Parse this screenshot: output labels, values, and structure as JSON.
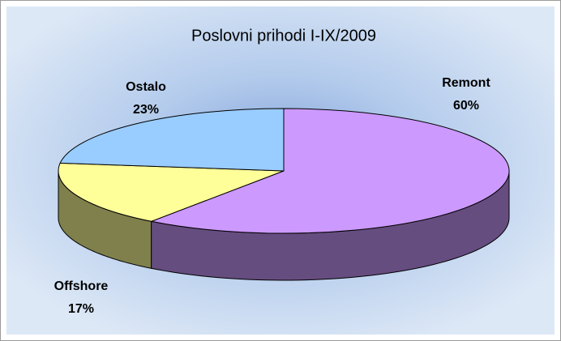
{
  "chart_data": {
    "type": "pie3d",
    "title": "Poslovni prihodi I-IX/2009",
    "categories": [
      "Remont",
      "Offshore",
      "Ostalo"
    ],
    "values": [
      60,
      17,
      23
    ],
    "value_labels": [
      "60%",
      "17%",
      "23%"
    ],
    "colors": [
      "#cc99ff",
      "#ffff99",
      "#99ccff"
    ]
  }
}
